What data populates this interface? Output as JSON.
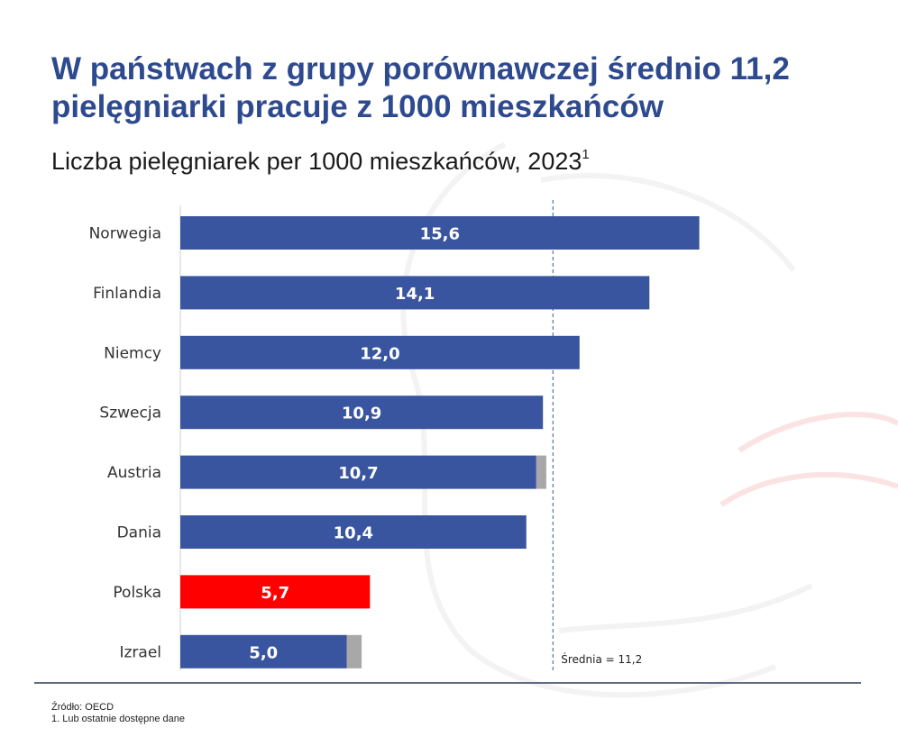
{
  "header": {
    "title": "W państwach z grupy porównawczej średnio 11,2 pielęgniarki pracuje z 1000 mieszkańców",
    "subtitle": "Liczba pielęgniarek per 1000 mieszkańców, 2023",
    "subtitle_sup": "1"
  },
  "chart_data": {
    "type": "bar",
    "orientation": "horizontal",
    "categories": [
      "Norwegia",
      "Finlandia",
      "Niemcy",
      "Szwecja",
      "Austria",
      "Dania",
      "Polska",
      "Izrael"
    ],
    "values": [
      15.6,
      14.1,
      12.0,
      10.9,
      10.7,
      10.4,
      5.7,
      5.0
    ],
    "value_labels": [
      "15,6",
      "14,1",
      "12,0",
      "10,9",
      "10,7",
      "10,4",
      "5,7",
      "5,0"
    ],
    "gray_extension_values": [
      0,
      0,
      0,
      0,
      0.3,
      0,
      0,
      0.45
    ],
    "highlight_category": "Polska",
    "average": 11.2,
    "average_label": "Średnia = 11,2",
    "xlim": [
      0,
      16
    ],
    "grid": false,
    "colors": {
      "bar": "#3a55a0",
      "highlight": "#ff0000",
      "extension": "#a8a8a8",
      "title": "#2e4a8f"
    }
  },
  "footer": {
    "source": "Źródło: OECD",
    "note": "1. Lub ostatnie dostępne dane"
  }
}
